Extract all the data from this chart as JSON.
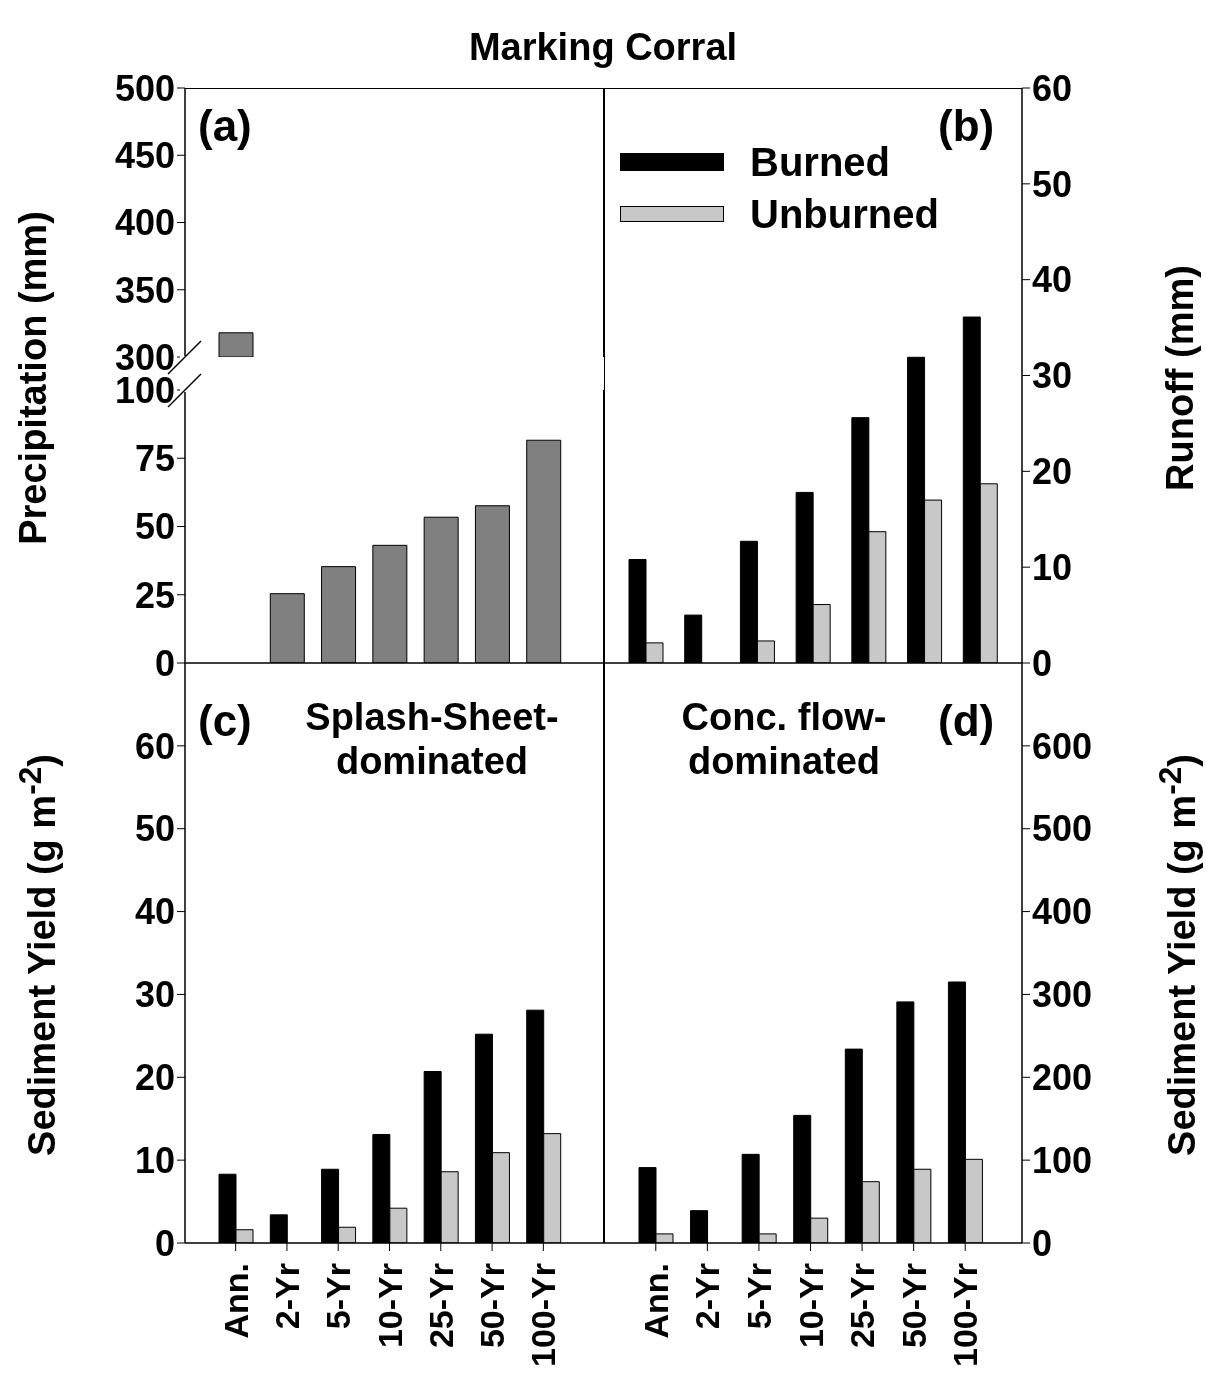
{
  "chart_data": [
    {
      "type": "bar",
      "title": "Marking Corral",
      "categories": [
        null,
        null,
        null,
        null,
        null,
        null,
        null
      ],
      "values": [
        318,
        null,
        null,
        null,
        null,
        null,
        null
      ],
      "color": "#808080",
      "ylim": [
        300,
        500
      ],
      "yticks": [
        300,
        350,
        400,
        450,
        500
      ],
      "tick_labels": "y",
      "annotations": [
        "(a)"
      ]
    },
    {
      "type": "bar",
      "ylabel": "Precipitation (mm)",
      "categories": [
        null,
        null,
        null,
        null,
        null,
        null,
        null
      ],
      "values": [
        null,
        25.4,
        35.3,
        43.1,
        53.4,
        57.6,
        81.6
      ],
      "color": "#808080",
      "ylim": [
        0,
        100
      ],
      "yticks": [
        0,
        25,
        50,
        75,
        100
      ],
      "tick_labels": "y"
    },
    {
      "type": "bar",
      "y2label": "Runoff (mm)",
      "categories": [
        null,
        null,
        null,
        null,
        null,
        null,
        null
      ],
      "series": [
        {
          "name": "Burned",
          "color": "#000000",
          "axis": "y2",
          "values": [
            10.8,
            5.0,
            12.7,
            17.8,
            25.6,
            31.9,
            36.1
          ]
        },
        {
          "name": "Unburned",
          "color": "#c8c8c8",
          "axis": "y2",
          "values": [
            2.1,
            null,
            2.3,
            6.1,
            13.7,
            17.0,
            18.7
          ]
        }
      ],
      "y2lim": [
        0,
        60
      ],
      "y2ticks": [
        0,
        10,
        20,
        30,
        40,
        50,
        60
      ],
      "legend": "top left",
      "tick_labels": "y2",
      "annotations": [
        "(b)"
      ]
    },
    {
      "type": "bar",
      "ylabel": "Sediment Yield (g m$^{-2}$)",
      "categories": [
        "Ann.",
        "2-Yr",
        "5-Yr",
        "10-Yr",
        "25-Yr",
        "50-Yr",
        "100-Yr"
      ],
      "series": [
        {
          "color": "#000000",
          "values": [
            8.3,
            3.4,
            8.9,
            13.1,
            20.7,
            25.2,
            28.1
          ]
        },
        {
          "color": "#c8c8c8",
          "values": [
            1.6,
            null,
            1.9,
            4.2,
            8.6,
            10.9,
            13.2
          ]
        }
      ],
      "ylim": [
        0,
        70
      ],
      "yticks": [
        0,
        10,
        20,
        30,
        40,
        50,
        60
      ],
      "annotations": [
        "(c)",
        "Splash-Sheet-dominated"
      ]
    },
    {
      "type": "bar",
      "y2label": "Sediment Yield (g m$^{-2}$)",
      "categories": [
        "Ann.",
        "2-Yr",
        "5-Yr",
        "10-Yr",
        "25-Yr",
        "50-Yr",
        "100-Yr"
      ],
      "series": [
        {
          "color": "#000000",
          "axis": "y2",
          "values": [
            91,
            39,
            107,
            154,
            234,
            291,
            315
          ]
        },
        {
          "color": "#c8c8c8",
          "axis": "y2",
          "values": [
            11,
            null,
            11,
            30,
            74,
            89,
            101
          ]
        }
      ],
      "y2lim": [
        0,
        700
      ],
      "y2ticks": [
        0,
        100,
        200,
        300,
        400,
        500,
        600
      ],
      "annotations": [
        "Conc. flow-dominated",
        "(d)"
      ]
    }
  ]
}
